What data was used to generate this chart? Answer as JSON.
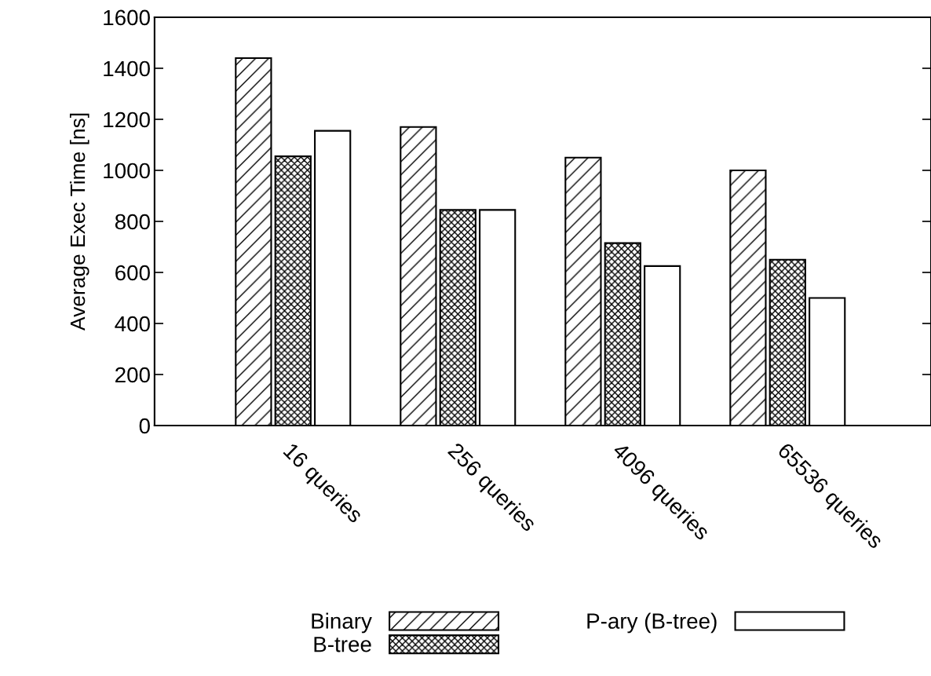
{
  "chart_data": {
    "type": "bar",
    "ylabel": "Average Exec Time [ns]",
    "categories": [
      "16 queries",
      "256 queries",
      "4096 queries",
      "65536 queries"
    ],
    "series": [
      {
        "name": "Binary",
        "values": [
          1440,
          1170,
          1050,
          1000
        ]
      },
      {
        "name": "B-tree",
        "values": [
          1055,
          845,
          715,
          650
        ]
      },
      {
        "name": "P-ary (B-tree)",
        "values": [
          1155,
          845,
          625,
          500
        ]
      }
    ],
    "ylim": [
      0,
      1600
    ],
    "yticks": [
      0,
      200,
      400,
      600,
      800,
      1000,
      1200,
      1400,
      1600
    ],
    "grid": false,
    "legend": "bottom"
  }
}
